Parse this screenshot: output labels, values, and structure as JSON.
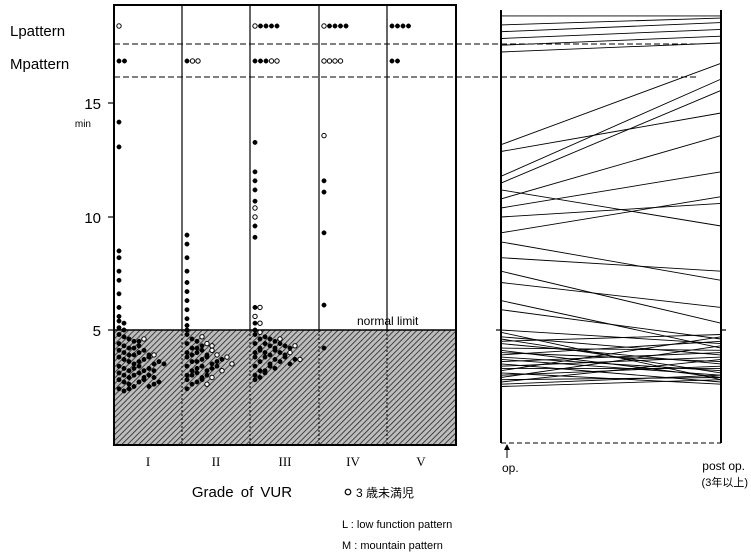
{
  "chart_data": [
    {
      "type": "scatter",
      "ylabel_unit": "min",
      "y_ticks": [
        "5",
        "10",
        "15"
      ],
      "ylim": [
        0,
        19.5
      ],
      "pattern_rows": [
        {
          "label": "Lpattern",
          "meaning": "L"
        },
        {
          "label": "Mpattern",
          "meaning": "M"
        }
      ],
      "categories": [
        "I",
        "II",
        "III",
        "IV",
        "V"
      ],
      "xlabel": "Grade of VUR",
      "reference_line": {
        "label": "normal limit",
        "value": 5
      },
      "shaded_region": "below normal limit (5 min)",
      "legend": {
        "open_circle": "3 歳未満児"
      },
      "series": [
        {
          "category": "I",
          "L_filled": 0,
          "L_open": 1,
          "M_filled": 2,
          "M_open": 0,
          "values_filled": [
            14.2,
            13.1,
            8.5,
            8.2,
            7.6,
            7.2,
            6.6,
            6.0,
            5.6,
            5.4,
            5.3,
            5.1,
            5.0,
            4.8,
            4.7,
            4.6,
            4.5,
            4.4,
            4.3,
            4.2,
            4.1,
            4.0,
            3.9,
            3.8,
            3.7,
            3.6,
            3.5,
            3.4,
            3.3,
            3.2,
            3.1,
            3.0,
            2.9,
            2.8,
            2.7,
            2.6,
            2.5,
            2.4,
            2.3,
            4.5,
            4.2,
            3.9,
            3.6,
            3.3,
            3.0,
            2.7,
            2.4,
            4.3,
            4.0,
            3.7,
            3.4,
            3.1,
            2.8,
            2.5,
            4.1,
            3.8,
            3.5,
            3.2,
            2.9,
            2.6,
            3.9,
            3.6,
            3.3,
            3.0,
            2.7,
            3.5,
            3.2,
            2.9
          ],
          "values_open": [
            4.6,
            3.9
          ]
        },
        {
          "category": "II",
          "L_filled": 0,
          "L_open": 0,
          "M_filled": 1,
          "M_open": 2,
          "values_filled": [
            9.2,
            8.8,
            8.2,
            7.6,
            7.1,
            6.7,
            6.3,
            5.9,
            5.5,
            5.2,
            5.0,
            4.8,
            4.6,
            4.4,
            4.2,
            4.0,
            3.8,
            3.6,
            3.4,
            3.2,
            3.0,
            2.8,
            2.6,
            2.4,
            4.5,
            4.2,
            3.9,
            3.6,
            3.3,
            3.0,
            2.7,
            4.3,
            4.0,
            3.7,
            3.4,
            3.1,
            2.8,
            4.1,
            3.8,
            3.5,
            3.2,
            2.9,
            3.9,
            3.6,
            3.3,
            3.0,
            3.7,
            3.4
          ],
          "values_open": [
            4.7,
            4.4,
            4.1,
            3.8,
            3.5,
            3.2,
            2.9,
            2.6,
            4.3,
            3.9
          ]
        },
        {
          "category": "III",
          "L_filled": 4,
          "L_open": 1,
          "M_filled": 3,
          "M_open": 2,
          "values_filled": [
            13.3,
            12.0,
            11.6,
            11.2,
            10.7,
            9.6,
            9.1,
            6.0,
            5.3,
            5.0,
            4.8,
            4.6,
            4.4,
            4.2,
            4.0,
            3.8,
            3.6,
            3.4,
            3.2,
            3.0,
            2.8,
            4.7,
            4.4,
            4.1,
            3.8,
            3.5,
            3.2,
            2.9,
            4.6,
            4.3,
            4.0,
            3.7,
            3.4,
            3.1,
            4.5,
            4.2,
            3.9,
            3.6,
            3.3,
            4.4,
            4.1,
            3.8,
            3.5,
            4.3,
            4.0,
            3.7,
            4.2,
            3.9
          ],
          "values_open": [
            10.4,
            10.0,
            6.0,
            5.6,
            5.3,
            4.9,
            4.6,
            4.3,
            4.0,
            3.7
          ]
        },
        {
          "category": "IV",
          "L_filled": 4,
          "L_open": 1,
          "M_filled": 0,
          "M_open": 4,
          "values_filled": [
            11.6,
            11.1,
            9.3,
            6.1,
            4.2
          ],
          "values_open": [
            13.6
          ]
        },
        {
          "category": "V",
          "L_filled": 4,
          "L_open": 0,
          "M_filled": 2,
          "M_open": 0,
          "values_filled": [],
          "values_open": []
        }
      ]
    },
    {
      "type": "line",
      "x": [
        "op.",
        "post op.\n(3年以上)"
      ],
      "x_labels": [
        "op.",
        "post op.",
        "(3年以上)"
      ],
      "note": "paired values, pre-operation vs post-operation (same y scale as left panel)",
      "segments": [
        [
          18.9,
          18.9
        ],
        [
          18.5,
          18.8
        ],
        [
          18.2,
          18.6
        ],
        [
          17.9,
          18.3
        ],
        [
          17.6,
          18.0
        ],
        [
          17.3,
          17.7
        ],
        [
          13.2,
          16.8
        ],
        [
          12.9,
          14.6
        ],
        [
          11.8,
          16.1
        ],
        [
          11.5,
          15.6
        ],
        [
          11.2,
          9.6
        ],
        [
          10.8,
          13.6
        ],
        [
          10.4,
          12.0
        ],
        [
          10.0,
          10.6
        ],
        [
          9.3,
          10.9
        ],
        [
          8.9,
          7.2
        ],
        [
          8.2,
          7.6
        ],
        [
          7.6,
          5.3
        ],
        [
          7.1,
          6.0
        ],
        [
          6.3,
          4.2
        ],
        [
          5.9,
          4.6
        ],
        [
          5.0,
          4.4
        ],
        [
          4.9,
          2.8
        ],
        [
          4.7,
          3.9
        ],
        [
          4.6,
          3.1
        ],
        [
          4.5,
          4.8
        ],
        [
          4.4,
          3.5
        ],
        [
          4.2,
          4.1
        ],
        [
          4.1,
          2.9
        ],
        [
          4.0,
          3.6
        ],
        [
          3.9,
          4.5
        ],
        [
          3.8,
          3.2
        ],
        [
          3.7,
          3.0
        ],
        [
          3.6,
          4.0
        ],
        [
          3.5,
          2.7
        ],
        [
          3.4,
          3.8
        ],
        [
          3.3,
          3.3
        ],
        [
          3.2,
          4.7
        ],
        [
          3.1,
          2.6
        ],
        [
          3.0,
          3.4
        ],
        [
          2.9,
          4.3
        ],
        [
          2.8,
          2.9
        ],
        [
          2.7,
          3.7
        ],
        [
          2.6,
          3.0
        ],
        [
          2.5,
          2.8
        ]
      ]
    }
  ],
  "footnotes": {
    "L": "L : low function pattern",
    "M": "M : mountain pattern"
  }
}
